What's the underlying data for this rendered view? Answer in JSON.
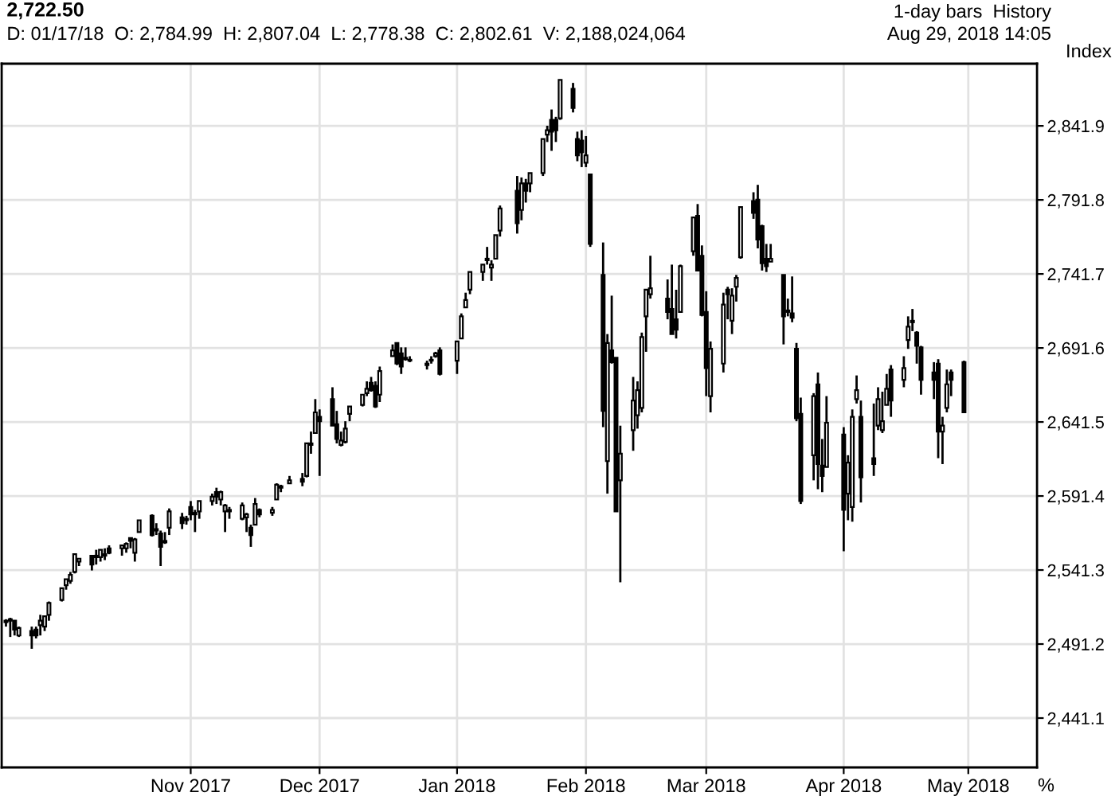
{
  "chart_data": {
    "type": "candlestick",
    "title": "2,722.50",
    "subtitle": "D: 01/17/18  O: 2,784.99  H: 2,807.04  L: 2,778.38  C: 2,802.61  V: 2,188,024,064",
    "ylabel": "Index",
    "annotations": [
      "1-day bars  History",
      "Aug 29, 2018 14:05",
      "%"
    ],
    "color": "#000000",
    "x": [
      "2017-09-19",
      "2017-09-20",
      "2017-09-21",
      "2017-09-22",
      "2017-09-25",
      "2017-09-26",
      "2017-09-27",
      "2017-09-28",
      "2017-09-29",
      "2017-10-02",
      "2017-10-03",
      "2017-10-04",
      "2017-10-05",
      "2017-10-06",
      "2017-10-09",
      "2017-10-10",
      "2017-10-11",
      "2017-10-12",
      "2017-10-13",
      "2017-10-16",
      "2017-10-17",
      "2017-10-18",
      "2017-10-19",
      "2017-10-20",
      "2017-10-23",
      "2017-10-24",
      "2017-10-25",
      "2017-10-26",
      "2017-10-27",
      "2017-10-30",
      "2017-10-31",
      "2017-11-01",
      "2017-11-02",
      "2017-11-03",
      "2017-11-06",
      "2017-11-07",
      "2017-11-08",
      "2017-11-09",
      "2017-11-10",
      "2017-11-13",
      "2017-11-14",
      "2017-11-15",
      "2017-11-16",
      "2017-11-17",
      "2017-11-20",
      "2017-11-21",
      "2017-11-22",
      "2017-11-24",
      "2017-11-27",
      "2017-11-28",
      "2017-11-29",
      "2017-11-30",
      "2017-12-01",
      "2017-12-04",
      "2017-12-05",
      "2017-12-06",
      "2017-12-07",
      "2017-12-08",
      "2017-12-11",
      "2017-12-12",
      "2017-12-13",
      "2017-12-14",
      "2017-12-15",
      "2017-12-18",
      "2017-12-19",
      "2017-12-20",
      "2017-12-21",
      "2017-12-22",
      "2017-12-26",
      "2017-12-27",
      "2017-12-28",
      "2017-12-29",
      "2018-01-02",
      "2018-01-03",
      "2018-01-04",
      "2018-01-05",
      "2018-01-08",
      "2018-01-09",
      "2018-01-10",
      "2018-01-11",
      "2018-01-12",
      "2018-01-16",
      "2018-01-17",
      "2018-01-18",
      "2018-01-19",
      "2018-01-22",
      "2018-01-23",
      "2018-01-24",
      "2018-01-25",
      "2018-01-26",
      "2018-01-29",
      "2018-01-30",
      "2018-01-31",
      "2018-02-01",
      "2018-02-02",
      "2018-02-05",
      "2018-02-06",
      "2018-02-07",
      "2018-02-08",
      "2018-02-09",
      "2018-02-12",
      "2018-02-13",
      "2018-02-14",
      "2018-02-15",
      "2018-02-16",
      "2018-02-20",
      "2018-02-21",
      "2018-02-22",
      "2018-02-23",
      "2018-02-26",
      "2018-02-27",
      "2018-02-28",
      "2018-03-01",
      "2018-03-02",
      "2018-03-05",
      "2018-03-06",
      "2018-03-07",
      "2018-03-08",
      "2018-03-09",
      "2018-03-12",
      "2018-03-13",
      "2018-03-14",
      "2018-03-15",
      "2018-03-16",
      "2018-03-19",
      "2018-03-20",
      "2018-03-21",
      "2018-03-22",
      "2018-03-23",
      "2018-03-26",
      "2018-03-27",
      "2018-03-28",
      "2018-03-29",
      "2018-04-02",
      "2018-04-03",
      "2018-04-04",
      "2018-04-05",
      "2018-04-06",
      "2018-04-09",
      "2018-04-10",
      "2018-04-11",
      "2018-04-12",
      "2018-04-13",
      "2018-04-16",
      "2018-04-17",
      "2018-04-18",
      "2018-04-19",
      "2018-04-20",
      "2018-04-23",
      "2018-04-24",
      "2018-04-25",
      "2018-04-26",
      "2018-04-27",
      "2018-04-30"
    ],
    "ohlc": [
      [
        2506,
        2508,
        2503,
        2507
      ],
      [
        2507,
        2509,
        2496,
        2508
      ],
      [
        2507,
        2507,
        2497,
        2501
      ],
      [
        2497,
        2503,
        2496,
        2502
      ],
      [
        2500,
        2503,
        2488,
        2497
      ],
      [
        2501,
        2503,
        2495,
        2497
      ],
      [
        2504,
        2511,
        2497,
        2507
      ],
      [
        2503,
        2510,
        2500,
        2510
      ],
      [
        2511,
        2520,
        2507,
        2519
      ],
      [
        2521,
        2529,
        2520,
        2529
      ],
      [
        2531,
        2535,
        2528,
        2535
      ],
      [
        2534,
        2540,
        2532,
        2538
      ],
      [
        2540,
        2552,
        2539,
        2552
      ],
      [
        2547,
        2549,
        2544,
        2549
      ],
      [
        2551,
        2551,
        2541,
        2545
      ],
      [
        2550,
        2555,
        2545,
        2551
      ],
      [
        2550,
        2555,
        2547,
        2555
      ],
      [
        2552,
        2556,
        2548,
        2551
      ],
      [
        2556,
        2558,
        2552,
        2553
      ],
      [
        2556,
        2558,
        2551,
        2558
      ],
      [
        2556,
        2560,
        2553,
        2559
      ],
      [
        2563,
        2563,
        2556,
        2561
      ],
      [
        2553,
        2563,
        2547,
        2562
      ],
      [
        2567,
        2575,
        2567,
        2575
      ],
      [
        2578,
        2579,
        2564,
        2565
      ],
      [
        2568,
        2573,
        2565,
        2569
      ],
      [
        2566,
        2568,
        2544,
        2557
      ],
      [
        2561,
        2567,
        2559,
        2560
      ],
      [
        2570,
        2583,
        2565,
        2581
      ],
      [
        2577,
        2580,
        2569,
        2573
      ],
      [
        2576,
        2578,
        2572,
        2575
      ],
      [
        2584,
        2588,
        2575,
        2579
      ],
      [
        2579,
        2582,
        2567,
        2580
      ],
      [
        2581,
        2588,
        2576,
        2588
      ],
      [
        2588,
        2593,
        2585,
        2591
      ],
      [
        2594,
        2597,
        2586,
        2591
      ],
      [
        2589,
        2595,
        2585,
        2594
      ],
      [
        2581,
        2586,
        2567,
        2585
      ],
      [
        2581,
        2584,
        2576,
        2582
      ],
      [
        2576,
        2587,
        2575,
        2585
      ],
      [
        2577,
        2580,
        2567,
        2579
      ],
      [
        2570,
        2572,
        2557,
        2565
      ],
      [
        2572,
        2590,
        2572,
        2586
      ],
      [
        2582,
        2583,
        2577,
        2579
      ],
      [
        2580,
        2584,
        2578,
        2582
      ],
      [
        2589,
        2600,
        2589,
        2599
      ],
      [
        2598,
        2599,
        2594,
        2597
      ],
      [
        2600,
        2605,
        2600,
        2602
      ],
      [
        2603,
        2607,
        2598,
        2601
      ],
      [
        2605,
        2627,
        2604,
        2627
      ],
      [
        2627,
        2635,
        2620,
        2626
      ],
      [
        2634,
        2657,
        2634,
        2648
      ],
      [
        2645,
        2650,
        2605,
        2642
      ],
      [
        2657,
        2665,
        2639,
        2639
      ],
      [
        2640,
        2649,
        2627,
        2630
      ],
      [
        2626,
        2635,
        2625,
        2629
      ],
      [
        2628,
        2642,
        2627,
        2637
      ],
      [
        2647,
        2652,
        2642,
        2652
      ],
      [
        2653,
        2660,
        2652,
        2660
      ],
      [
        2661,
        2669,
        2659,
        2664
      ],
      [
        2668,
        2672,
        2662,
        2663
      ],
      [
        2666,
        2669,
        2651,
        2652
      ],
      [
        2660,
        2679,
        2655,
        2676
      ],
      [
        2686,
        2694,
        2686,
        2690
      ],
      [
        2695,
        2695,
        2680,
        2681
      ],
      [
        2688,
        2692,
        2674,
        2679
      ],
      [
        2684,
        2692,
        2683,
        2685
      ],
      [
        2683,
        2686,
        2682,
        2683
      ],
      [
        2680,
        2683,
        2677,
        2681
      ],
      [
        2683,
        2686,
        2681,
        2683
      ],
      [
        2686,
        2689,
        2685,
        2688
      ],
      [
        2690,
        2692,
        2673,
        2674
      ],
      [
        2683,
        2696,
        2674,
        2696
      ],
      [
        2698,
        2715,
        2698,
        2713
      ],
      [
        2719,
        2729,
        2719,
        2724
      ],
      [
        2731,
        2743,
        2728,
        2743
      ],
      [
        2743,
        2748,
        2737,
        2748
      ],
      [
        2752,
        2760,
        2748,
        2751
      ],
      [
        2746,
        2751,
        2737,
        2748
      ],
      [
        2752,
        2768,
        2752,
        2768
      ],
      [
        2771,
        2788,
        2767,
        2786
      ],
      [
        2798,
        2808,
        2769,
        2776
      ],
      [
        2785,
        2807,
        2778,
        2803
      ],
      [
        2803,
        2806,
        2790,
        2798
      ],
      [
        2803,
        2810,
        2797,
        2810
      ],
      [
        2810,
        2833,
        2808,
        2833
      ],
      [
        2836,
        2842,
        2831,
        2839
      ],
      [
        2846,
        2853,
        2825,
        2838
      ],
      [
        2846,
        2848,
        2831,
        2839
      ],
      [
        2847,
        2873,
        2846,
        2873
      ],
      [
        2867,
        2871,
        2851,
        2854
      ],
      [
        2833,
        2838,
        2818,
        2822
      ],
      [
        2832,
        2839,
        2814,
        2824
      ],
      [
        2817,
        2835,
        2814,
        2822
      ],
      [
        2809,
        2809,
        2760,
        2762
      ],
      [
        2741,
        2763,
        2638,
        2649
      ],
      [
        2615,
        2701,
        2593,
        2695
      ],
      [
        2690,
        2727,
        2681,
        2682
      ],
      [
        2685,
        2685,
        2581,
        2581
      ],
      [
        2602,
        2639,
        2533,
        2620
      ],
      [
        2636,
        2672,
        2622,
        2656
      ],
      [
        2646,
        2669,
        2637,
        2663
      ],
      [
        2651,
        2702,
        2648,
        2699
      ],
      [
        2713,
        2731,
        2689,
        2731
      ],
      [
        2728,
        2754,
        2725,
        2732
      ],
      [
        2725,
        2738,
        2711,
        2716
      ],
      [
        2718,
        2748,
        2701,
        2701
      ],
      [
        2711,
        2731,
        2698,
        2704
      ],
      [
        2716,
        2748,
        2716,
        2747
      ],
      [
        2757,
        2780,
        2754,
        2780
      ],
      [
        2781,
        2789,
        2744,
        2744
      ],
      [
        2754,
        2761,
        2713,
        2714
      ],
      [
        2716,
        2730,
        2659,
        2678
      ],
      [
        2659,
        2696,
        2648,
        2691
      ],
      [
        2681,
        2729,
        2675,
        2721
      ],
      [
        2731,
        2733,
        2711,
        2728
      ],
      [
        2710,
        2732,
        2701,
        2727
      ],
      [
        2733,
        2741,
        2723,
        2739
      ],
      [
        2753,
        2787,
        2752,
        2787
      ],
      [
        2791,
        2797,
        2779,
        2783
      ],
      [
        2792,
        2802,
        2759,
        2765
      ],
      [
        2774,
        2775,
        2744,
        2749
      ],
      [
        2752,
        2762,
        2743,
        2747
      ],
      [
        2750,
        2762,
        2750,
        2752
      ],
      [
        2741,
        2741,
        2694,
        2713
      ],
      [
        2716,
        2725,
        2713,
        2717
      ],
      [
        2715,
        2740,
        2709,
        2712
      ],
      [
        2691,
        2695,
        2642,
        2644
      ],
      [
        2647,
        2658,
        2586,
        2588
      ],
      [
        2619,
        2661,
        2602,
        2659
      ],
      [
        2667,
        2675,
        2596,
        2613
      ],
      [
        2612,
        2630,
        2594,
        2605
      ],
      [
        2611,
        2659,
        2611,
        2641
      ],
      [
        2633,
        2638,
        2554,
        2582
      ],
      [
        2593,
        2619,
        2575,
        2614
      ],
      [
        2584,
        2650,
        2574,
        2645
      ],
      [
        2657,
        2673,
        2654,
        2663
      ],
      [
        2645,
        2656,
        2587,
        2604
      ],
      [
        2617,
        2654,
        2605,
        2613
      ],
      [
        2639,
        2665,
        2636,
        2657
      ],
      [
        2636,
        2662,
        2634,
        2642
      ],
      [
        2653,
        2674,
        2653,
        2664
      ],
      [
        2677,
        2680,
        2645,
        2656
      ],
      [
        2670,
        2686,
        2665,
        2678
      ],
      [
        2697,
        2713,
        2691,
        2706
      ],
      [
        2710,
        2718,
        2703,
        2709
      ],
      [
        2702,
        2703,
        2681,
        2693
      ],
      [
        2692,
        2693,
        2660,
        2670
      ],
      [
        2675,
        2682,
        2657,
        2670
      ],
      [
        2681,
        2684,
        2617,
        2635
      ],
      [
        2635,
        2645,
        2613,
        2639
      ],
      [
        2651,
        2677,
        2648,
        2667
      ],
      [
        2675,
        2677,
        2659,
        2670
      ],
      [
        2682,
        2683,
        2648,
        2648
      ]
    ],
    "xlim": [
      "2017-09-18",
      "2018-05-17"
    ],
    "xticks": [
      {
        "value": "2017-11-01",
        "label": "Nov 2017"
      },
      {
        "value": "2017-12-01",
        "label": "Dec 2017"
      },
      {
        "value": "2018-01-02",
        "label": "Jan 2018"
      },
      {
        "value": "2018-02-01",
        "label": "Feb 2018"
      },
      {
        "value": "2018-03-01",
        "label": "Mar 2018"
      },
      {
        "value": "2018-04-02",
        "label": "Apr 2018"
      },
      {
        "value": "2018-05-01",
        "label": "May 2018"
      }
    ],
    "ylim": [
      2407.7,
      2884
    ],
    "yticks": [
      {
        "value": 2441.1,
        "label": "2,441.1"
      },
      {
        "value": 2491.2,
        "label": "2,491.2"
      },
      {
        "value": 2541.3,
        "label": "2,541.3"
      },
      {
        "value": 2591.4,
        "label": "2,591.4"
      },
      {
        "value": 2641.5,
        "label": "2,641.5"
      },
      {
        "value": 2691.6,
        "label": "2,691.6"
      },
      {
        "value": 2741.7,
        "label": "2,741.7"
      },
      {
        "value": 2791.8,
        "label": "2,791.8"
      },
      {
        "value": 2841.9,
        "label": "2,841.9"
      }
    ],
    "grid": true
  }
}
